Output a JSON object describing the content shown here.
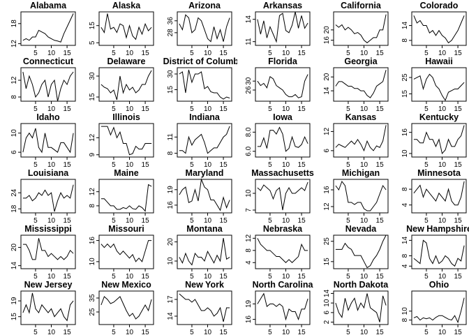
{
  "chart_data": {
    "type": "line",
    "layout": {
      "rows": 6,
      "cols": 6
    },
    "x": [
      1,
      2,
      3,
      4,
      5,
      6,
      7,
      8,
      9,
      10,
      11,
      12,
      13,
      14,
      15,
      16,
      17
    ],
    "x_ticks": [
      5,
      10,
      15
    ],
    "panels": [
      {
        "title": "Alabama",
        "ylim": [
          11.5,
          21.5
        ],
        "y_ticks": [
          12,
          18
        ],
        "values": [
          13,
          13.5,
          13,
          14,
          14,
          16,
          15.5,
          15,
          14,
          13.5,
          13,
          12.8,
          12.5,
          15,
          17,
          19,
          21
        ]
      },
      {
        "title": "Alaska",
        "ylim": [
          3.5,
          23
        ],
        "y_ticks": [
          5,
          15
        ],
        "values": [
          14,
          11,
          22,
          13,
          14,
          11,
          16,
          15,
          8,
          15,
          9,
          7,
          14,
          10,
          16,
          12,
          14
        ]
      },
      {
        "title": "Arizona",
        "ylim": [
          19.5,
          42
        ],
        "y_ticks": [
          28,
          36
        ],
        "values": [
          34,
          30,
          40,
          38,
          28,
          30,
          38,
          36,
          30,
          24,
          22,
          32,
          24,
          30,
          22,
          32,
          38
        ]
      },
      {
        "title": "Arkansas",
        "ylim": [
          10.5,
          15
        ],
        "y_ticks": [
          11,
          14
        ],
        "values": [
          14,
          12,
          13.8,
          11.5,
          13,
          12,
          11,
          14.5,
          14.8,
          12.5,
          12.2,
          13.2,
          15,
          12.8,
          14.5,
          12.8,
          13.5
        ]
      },
      {
        "title": "California",
        "ylim": [
          14,
          27
        ],
        "y_ticks": [
          16,
          20
        ],
        "values": [
          22,
          21,
          22,
          20,
          21,
          20,
          18.5,
          19,
          18,
          16,
          15,
          16,
          17,
          17,
          20,
          20,
          26
        ]
      },
      {
        "title": "Colorado",
        "ylim": [
          6,
          19.5
        ],
        "y_ticks": [
          8,
          14
        ],
        "values": [
          18,
          15,
          16,
          14,
          14,
          11,
          12,
          10,
          12,
          10,
          9,
          7,
          8,
          10,
          12,
          15,
          18
        ]
      },
      {
        "title": "Connecticut",
        "ylim": [
          7,
          15
        ],
        "y_ticks": [
          8,
          12
        ],
        "values": [
          14,
          10,
          13,
          11,
          8,
          9,
          11,
          12,
          8,
          11,
          12,
          7,
          10,
          12,
          11,
          13,
          14
        ]
      },
      {
        "title": "Delaware",
        "ylim": [
          12,
          36
        ],
        "y_ticks": [
          15,
          30
        ],
        "values": [
          24,
          22,
          21,
          18,
          20,
          13,
          30,
          18,
          24,
          20,
          22,
          18,
          20,
          24,
          24,
          30,
          34
        ]
      },
      {
        "title": "District of Columbia",
        "ylim": [
          4,
          36
        ],
        "y_ticks": [
          15,
          30
        ],
        "values": [
          30,
          32,
          12,
          34,
          22,
          30,
          30,
          32,
          16,
          18,
          13,
          12,
          12,
          8,
          6,
          8,
          7
        ]
      },
      {
        "title": "Florida",
        "ylim": [
          21,
          36
        ],
        "y_ticks": [
          26,
          30
        ],
        "values": [
          30,
          28,
          29,
          27,
          32,
          31,
          28,
          27,
          26,
          24,
          23,
          23,
          24,
          22.5,
          23,
          30,
          33
        ]
      },
      {
        "title": "Georgia",
        "ylim": [
          9.5,
          24
        ],
        "y_ticks": [
          14,
          20
        ],
        "values": [
          16,
          18,
          18,
          17,
          16,
          16,
          15,
          15,
          14,
          14,
          12,
          11,
          13,
          16,
          17,
          18,
          23
        ]
      },
      {
        "title": "Hawaii",
        "ylim": [
          10.5,
          31
        ],
        "y_ticks": [
          15,
          25
        ],
        "values": [
          24,
          25,
          26,
          18,
          24,
          27,
          25,
          20,
          18,
          14,
          11,
          16,
          17,
          18,
          18,
          20,
          22
        ]
      },
      {
        "title": "Idaho",
        "ylim": [
          5,
          12
        ],
        "y_ticks": [
          6,
          10
        ],
        "values": [
          6,
          9,
          10,
          9,
          11,
          7,
          6,
          10,
          7,
          7,
          6.5,
          6,
          8,
          8,
          7,
          6,
          10
        ]
      },
      {
        "title": "Illinois",
        "ylim": [
          8.6,
          14.5
        ],
        "y_ticks": [
          9,
          12
        ],
        "values": [
          14,
          14,
          14,
          12.5,
          13.8,
          12,
          13,
          11,
          11,
          9,
          9.2,
          10.5,
          10,
          10,
          11,
          11,
          11
        ]
      },
      {
        "title": "Indiana",
        "ylim": [
          7.3,
          13.5
        ],
        "y_ticks": [
          8,
          11
        ],
        "values": [
          8.5,
          8.5,
          8,
          11,
          9.5,
          10.5,
          11,
          11.5,
          10,
          8,
          8.5,
          9,
          9,
          10,
          11,
          11.5,
          13
        ]
      },
      {
        "title": "Iowa",
        "ylim": [
          5.4,
          8.9
        ],
        "y_ticks": [
          6.0,
          8.0
        ],
        "values": [
          6.5,
          6.5,
          7.4,
          6.3,
          8.2,
          8.2,
          7.8,
          8.5,
          7.8,
          6,
          6.3,
          7.5,
          6.5,
          6.4,
          6.7,
          7.5,
          6.8
        ]
      },
      {
        "title": "Kansas",
        "ylim": [
          4,
          14.5
        ],
        "y_ticks": [
          6,
          12
        ],
        "values": [
          7,
          8,
          7.5,
          7,
          8,
          9,
          8,
          9.5,
          8,
          6,
          9,
          7,
          6,
          7.5,
          7,
          9,
          14
        ]
      },
      {
        "title": "Kentucky",
        "ylim": [
          9,
          18.5
        ],
        "y_ticks": [
          10,
          16
        ],
        "values": [
          14,
          14,
          13,
          13,
          16,
          14,
          14,
          12,
          14,
          10,
          11,
          14,
          12,
          12,
          14,
          15,
          18
        ]
      },
      {
        "title": "Louisiana",
        "ylim": [
          16.5,
          29
        ],
        "y_ticks": [
          18,
          24
        ],
        "values": [
          22,
          22,
          23,
          21,
          22,
          24,
          23,
          25,
          23,
          24,
          17,
          21,
          24,
          22,
          23,
          22,
          27
        ]
      },
      {
        "title": "Maine",
        "ylim": [
          6,
          15.5
        ],
        "y_ticks": [
          8,
          12
        ],
        "values": [
          10,
          10,
          9,
          8,
          8,
          7,
          7,
          7.5,
          7.2,
          8,
          7.2,
          7,
          8,
          7.5,
          6.5,
          14,
          13.5
        ]
      },
      {
        "title": "Maryland",
        "ylim": [
          14.5,
          21
        ],
        "y_ticks": [
          16,
          19
        ],
        "values": [
          18,
          19,
          19.5,
          16.5,
          16.8,
          19,
          16.8,
          21,
          19.5,
          19,
          17,
          17,
          16,
          15,
          17.5,
          15.5,
          17
        ]
      },
      {
        "title": "Massachusetts",
        "ylim": [
          6.5,
          12.5
        ],
        "y_ticks": [
          7,
          10
        ],
        "values": [
          11,
          10.5,
          11.5,
          11,
          10.5,
          9,
          10.5,
          11,
          7,
          10,
          11,
          10,
          10,
          10.5,
          11,
          10.5,
          12
        ]
      },
      {
        "title": "Michigan",
        "ylim": [
          10.5,
          18.5
        ],
        "y_ticks": [
          12,
          16
        ],
        "values": [
          17,
          16,
          18,
          17,
          13,
          13,
          12.5,
          13,
          13,
          11.5,
          11,
          11,
          12,
          13,
          15,
          17,
          16
        ]
      },
      {
        "title": "Minnesota",
        "ylim": [
          2,
          10.5
        ],
        "y_ticks": [
          4,
          8
        ],
        "values": [
          7,
          8,
          9,
          6,
          8,
          7,
          6,
          5,
          7,
          6,
          5,
          8,
          5,
          4,
          4,
          6,
          10
        ]
      },
      {
        "title": "Mississippi",
        "ylim": [
          13,
          24
        ],
        "y_ticks": [
          14,
          20
        ],
        "values": [
          21,
          21,
          19,
          16,
          16,
          23,
          19,
          19,
          17,
          18,
          17,
          16,
          17,
          16,
          17,
          19,
          18
        ]
      },
      {
        "title": "Missouri",
        "ylim": [
          8,
          17.5
        ],
        "y_ticks": [
          10,
          16
        ],
        "values": [
          15,
          14,
          15,
          14,
          15,
          13,
          12,
          13,
          12,
          11,
          12,
          10,
          11,
          10,
          13,
          16,
          16
        ]
      },
      {
        "title": "Montana",
        "ylim": [
          6,
          23.5
        ],
        "y_ticks": [
          10,
          20
        ],
        "values": [
          12,
          9,
          14,
          10,
          8,
          14,
          12,
          12,
          10,
          15,
          12,
          9,
          13,
          10,
          22,
          11,
          12
        ]
      },
      {
        "title": "Nebraska",
        "ylim": [
          2,
          13
        ],
        "y_ticks": [
          4,
          8,
          12
        ],
        "values": [
          12,
          10,
          9,
          8,
          8,
          7,
          6,
          6,
          5,
          4,
          5,
          4,
          5,
          6,
          10,
          8,
          8
        ]
      },
      {
        "title": "Nevada",
        "ylim": [
          11.5,
          28
        ],
        "y_ticks": [
          15,
          25
        ],
        "values": [
          21,
          21,
          21,
          24,
          22,
          21,
          18,
          18,
          18,
          15,
          12,
          13,
          16,
          18,
          21,
          25,
          28
        ]
      },
      {
        "title": "New Hampshire",
        "ylim": [
          3,
          16
        ],
        "y_ticks": [
          4,
          8,
          14
        ],
        "values": [
          7,
          6,
          5,
          14,
          13,
          7,
          5,
          8,
          5,
          6,
          8,
          7,
          5,
          4,
          7,
          6,
          12
        ]
      },
      {
        "title": "New Jersey",
        "ylim": [
          13,
          21.5
        ],
        "y_ticks": [
          15,
          19
        ],
        "values": [
          16,
          18,
          16,
          21,
          17,
          16,
          18,
          17,
          16,
          17,
          15,
          16,
          17,
          15,
          14,
          18,
          19
        ]
      },
      {
        "title": "New Mexico",
        "ylim": [
          16,
          40
        ],
        "y_ticks": [
          25,
          35
        ],
        "values": [
          30,
          36,
          34,
          31,
          32,
          34,
          36,
          31,
          26,
          22,
          24,
          20,
          22,
          26,
          30,
          26,
          34
        ]
      },
      {
        "title": "New York",
        "ylim": [
          12.5,
          18.5
        ],
        "y_ticks": [
          14,
          17
        ],
        "values": [
          18,
          17.5,
          17,
          17,
          16.5,
          17,
          16,
          15,
          15,
          15.5,
          15,
          14,
          14.5,
          15.5,
          13,
          15.5,
          15.5
        ]
      },
      {
        "title": "North Carolina",
        "ylim": [
          15,
          21.5
        ],
        "y_ticks": [
          16,
          19
        ],
        "values": [
          19,
          20,
          21,
          18.5,
          19,
          19,
          18.5,
          19,
          18.5,
          16,
          18,
          17.5,
          17.5,
          16,
          18,
          18,
          20
        ]
      },
      {
        "title": "North Dakota",
        "ylim": [
          1,
          15
        ],
        "y_ticks": [
          2,
          6,
          10,
          14
        ],
        "values": [
          10,
          6,
          4,
          12,
          7,
          10,
          12,
          7,
          10,
          8,
          14,
          8,
          7,
          6,
          2,
          13,
          9
        ]
      },
      {
        "title": "Ohio",
        "ylim": [
          7,
          14.5
        ],
        "y_ticks": [
          8,
          10
        ],
        "values": [
          8.5,
          8.8,
          8,
          8.5,
          8.3,
          8.5,
          8,
          8.6,
          9,
          9,
          8.6,
          8.2,
          8,
          9,
          7.5,
          10,
          13
        ]
      }
    ]
  }
}
